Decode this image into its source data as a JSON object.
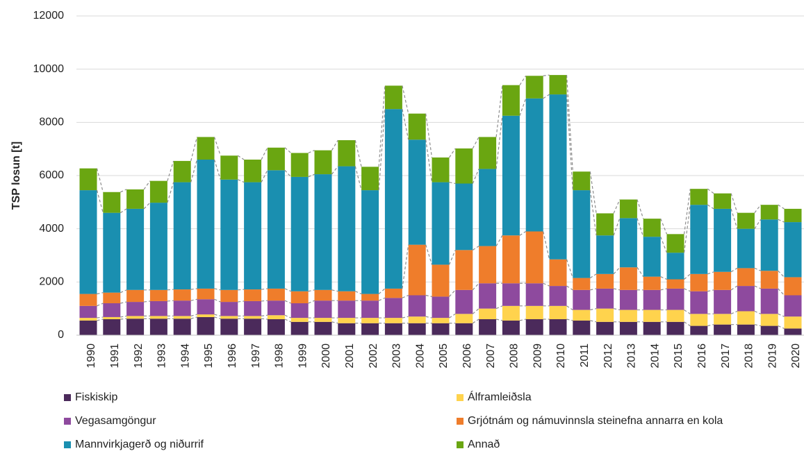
{
  "chart_data": {
    "type": "bar",
    "stacked": true,
    "grid": true,
    "connector_lines": true,
    "y_label": "TSP losun [t]",
    "categories": [
      "1990",
      "1991",
      "1992",
      "1993",
      "1994",
      "1995",
      "1996",
      "1997",
      "1998",
      "1999",
      "2000",
      "2001",
      "2002",
      "2003",
      "2004",
      "2005",
      "2006",
      "2007",
      "2008",
      "2009",
      "2010",
      "2011",
      "2012",
      "2013",
      "2014",
      "2015",
      "2016",
      "2017",
      "2018",
      "2019",
      "2020"
    ],
    "ylim": [
      0,
      12000
    ],
    "yticks": [
      0,
      2000,
      4000,
      6000,
      8000,
      10000,
      12000
    ],
    "series": [
      {
        "name": "Fiskiskip",
        "color": "#4b2a5b",
        "values": [
          550,
          600,
          620,
          620,
          620,
          680,
          620,
          620,
          600,
          500,
          500,
          450,
          450,
          450,
          450,
          450,
          450,
          600,
          550,
          600,
          600,
          550,
          500,
          500,
          500,
          500,
          350,
          400,
          400,
          350,
          250
        ]
      },
      {
        "name": "Álframleiðsla",
        "color": "#ffd34d",
        "values": [
          100,
          80,
          100,
          100,
          100,
          100,
          100,
          100,
          150,
          150,
          150,
          200,
          200,
          200,
          250,
          200,
          350,
          400,
          550,
          500,
          500,
          400,
          500,
          450,
          450,
          450,
          450,
          400,
          500,
          450,
          450
        ]
      },
      {
        "name": "Vegasamgöngur",
        "color": "#8e4a9e",
        "values": [
          450,
          520,
          530,
          560,
          580,
          570,
          530,
          560,
          550,
          550,
          650,
          650,
          650,
          750,
          800,
          800,
          900,
          950,
          850,
          850,
          750,
          750,
          750,
          750,
          750,
          800,
          850,
          900,
          950,
          950,
          800
        ]
      },
      {
        "name": "Grjótnám og námuvinnsla steinefna annarra en kola",
        "color": "#ef7d2b",
        "values": [
          450,
          400,
          450,
          420,
          420,
          400,
          450,
          440,
          450,
          450,
          400,
          350,
          250,
          350,
          1900,
          1200,
          1500,
          1400,
          1800,
          1950,
          1000,
          450,
          550,
          850,
          500,
          350,
          650,
          680,
          670,
          670,
          680
        ]
      },
      {
        "name": "Mannvirkjagerð og niðurrif",
        "color": "#1a8fb0",
        "values": [
          3900,
          3000,
          3050,
          3280,
          4030,
          4850,
          4150,
          4030,
          4450,
          4300,
          4350,
          4700,
          3900,
          6750,
          3950,
          3100,
          2500,
          2900,
          4500,
          5000,
          6200,
          3300,
          1450,
          1850,
          1500,
          1000,
          2600,
          2370,
          1480,
          1930,
          2070
        ]
      },
      {
        "name": "Annað",
        "color": "#6aa611",
        "values": [
          820,
          780,
          730,
          820,
          800,
          850,
          900,
          850,
          850,
          900,
          900,
          980,
          880,
          880,
          980,
          930,
          1320,
          1200,
          1150,
          850,
          730,
          700,
          830,
          700,
          680,
          700,
          600,
          580,
          600,
          550,
          500
        ]
      }
    ]
  }
}
